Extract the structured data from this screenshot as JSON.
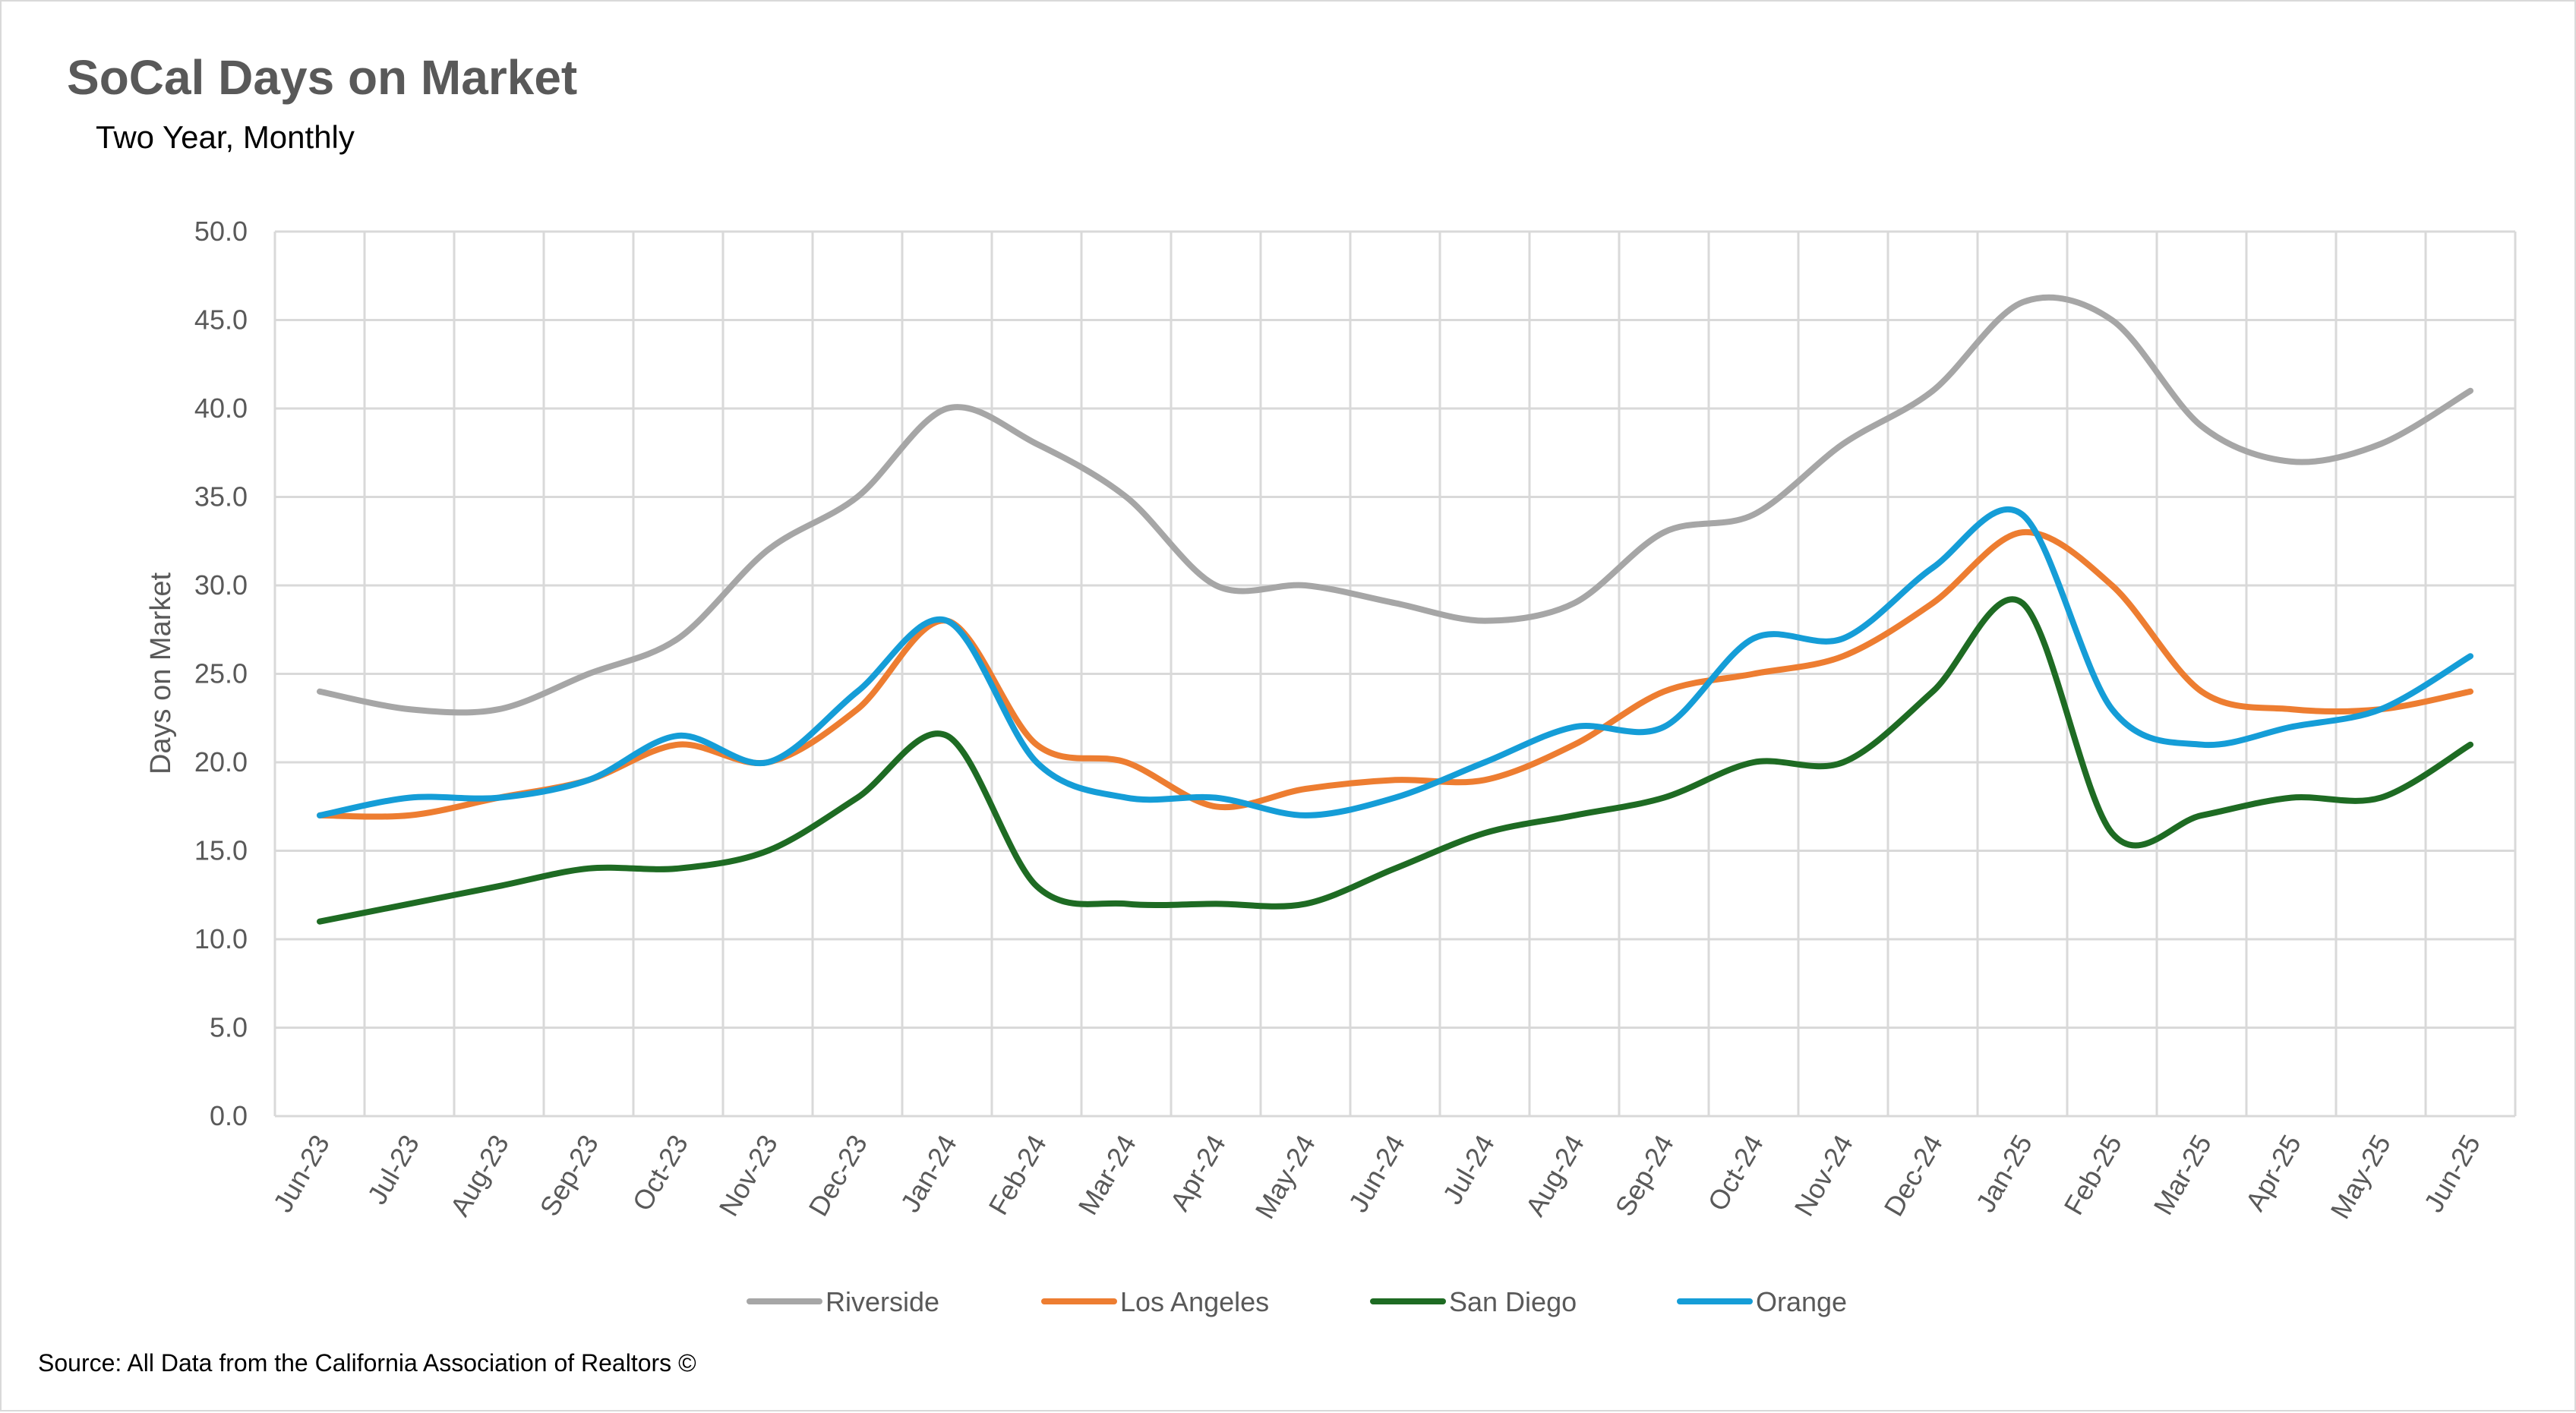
{
  "chart_data": {
    "type": "line",
    "title": "SoCal Days on Market",
    "subtitle": "Two Year, Monthly",
    "xlabel": "",
    "ylabel": "Days on Market",
    "ylim": [
      0,
      50
    ],
    "y_ticks": [
      "0.0",
      "5.0",
      "10.0",
      "15.0",
      "20.0",
      "25.0",
      "30.0",
      "35.0",
      "40.0",
      "45.0",
      "50.0"
    ],
    "grid": true,
    "legend_position": "bottom",
    "categories": [
      "Jun-23",
      "Jul-23",
      "Aug-23",
      "Sep-23",
      "Oct-23",
      "Nov-23",
      "Dec-23",
      "Jan-24",
      "Feb-24",
      "Mar-24",
      "Apr-24",
      "May-24",
      "Jun-24",
      "Jul-24",
      "Aug-24",
      "Sep-24",
      "Oct-24",
      "Nov-24",
      "Dec-24",
      "Jan-25",
      "Feb-25",
      "Mar-25",
      "Apr-25",
      "May-25",
      "Jun-25"
    ],
    "series": [
      {
        "name": "Riverside",
        "color": "#a6a6a6",
        "values": [
          24,
          23,
          23,
          25,
          27,
          32,
          35,
          40,
          38,
          35,
          30,
          30,
          29,
          28,
          29,
          33,
          34,
          38,
          41,
          46,
          45,
          39,
          37,
          38,
          41
        ]
      },
      {
        "name": "Los Angeles",
        "color": "#ed7d31",
        "values": [
          17,
          17,
          18,
          19,
          21,
          20,
          23,
          28,
          21,
          20,
          17.5,
          18.5,
          19,
          19,
          21,
          24,
          25,
          26,
          29,
          33,
          30,
          24,
          23,
          23,
          24
        ]
      },
      {
        "name": "San Diego",
        "color": "#1e6b23",
        "values": [
          11,
          12,
          13,
          14,
          14,
          15,
          18,
          21.5,
          13,
          12,
          12,
          12,
          14,
          16,
          17,
          18,
          20,
          20,
          24,
          29,
          16,
          17,
          18,
          18,
          21
        ]
      },
      {
        "name": "Orange",
        "color": "#159dd7",
        "values": [
          17,
          18,
          18,
          19,
          21.5,
          20,
          24,
          28,
          20,
          18,
          18,
          17,
          18,
          20,
          22,
          22,
          27,
          27,
          31,
          34,
          23,
          21,
          22,
          23,
          26
        ]
      }
    ]
  },
  "source_note": "Source: All Data from the California Association of Realtors ©"
}
